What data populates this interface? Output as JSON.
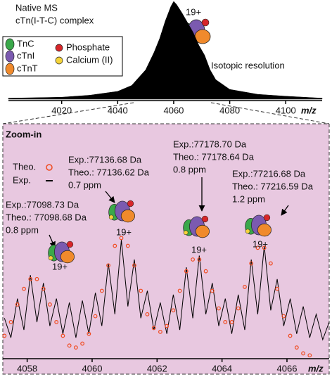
{
  "chart_data": [
    {
      "type": "area",
      "annotations": [
        "Native MS",
        "cTn(I-T-C) complex",
        "19+",
        "Isotopic resolution"
      ],
      "legend": [
        {
          "name": "TnC",
          "color": "#3aa84a"
        },
        {
          "name": "cTnI",
          "color": "#7b5ab0"
        },
        {
          "name": "cTnT",
          "color": "#f08a2c"
        },
        {
          "name": "Phosphate",
          "color": "#d7262a"
        },
        {
          "name": "Calcium (II)",
          "color": "#f5d43a"
        }
      ],
      "xlabel": "m/z",
      "x": [
        4001,
        4020,
        4030,
        4040,
        4045,
        4050,
        4053,
        4055,
        4057,
        4059,
        4060,
        4061,
        4063,
        4065,
        4067,
        4069,
        4071,
        4073,
        4075,
        4080,
        4090,
        4100,
        4113
      ],
      "values": [
        1,
        2,
        4,
        8,
        14,
        30,
        48,
        62,
        80,
        95,
        100,
        97,
        88,
        78,
        68,
        55,
        45,
        30,
        20,
        10,
        5,
        3,
        1
      ],
      "color": "#000000",
      "xlim": [
        4001,
        4113
      ],
      "ylim": [
        0,
        100
      ],
      "xticks": [
        4020,
        4040,
        4060,
        4080,
        4100
      ]
    },
    {
      "type": "line",
      "title": "Zoom-in",
      "xlabel": "m/z",
      "x": [
        4057.3,
        4057.5,
        4057.7,
        4057.9,
        4058.1,
        4058.3,
        4058.5,
        4058.7,
        4058.9,
        4059.1,
        4059.3,
        4059.5,
        4059.7,
        4059.9,
        4060.1,
        4060.3,
        4060.5,
        4060.7,
        4060.9,
        4061.1,
        4061.3,
        4061.5,
        4061.7,
        4061.9,
        4062.1,
        4062.3,
        4062.5,
        4062.7,
        4062.9,
        4063.1,
        4063.3,
        4063.5,
        4063.7,
        4063.9,
        4064.1,
        4064.3,
        4064.5,
        4064.7,
        4064.9,
        4065.1,
        4065.3,
        4065.5,
        4065.7,
        4065.9,
        4066.1,
        4066.3,
        4066.5,
        4066.7,
        4066.9,
        4067.1,
        4067.3
      ],
      "series": [
        {
          "name": "Theo.",
          "color": "#f04a1e",
          "mode": "markers",
          "values": [
            11,
            18,
            27,
            35,
            40,
            40,
            35,
            27,
            18,
            11,
            6,
            5,
            7,
            12,
            21,
            34,
            47,
            57,
            61,
            57,
            47,
            34,
            22,
            15,
            13,
            16,
            24,
            34,
            44,
            50,
            50,
            44,
            34,
            25,
            18,
            18,
            25,
            36,
            48,
            56,
            56,
            48,
            35,
            21,
            11,
            5,
            2,
            1,
            null,
            null,
            null
          ]
        },
        {
          "name": "Exp.",
          "color": "#000000",
          "mode": "lines",
          "values": [
            20,
            10,
            30,
            14,
            42,
            18,
            38,
            16,
            30,
            12,
            28,
            10,
            29,
            12,
            33,
            16,
            48,
            22,
            60,
            26,
            50,
            20,
            34,
            14,
            28,
            12,
            32,
            14,
            46,
            20,
            52,
            22,
            38,
            16,
            30,
            12,
            32,
            14,
            50,
            22,
            57,
            24,
            40,
            16,
            30,
            12,
            26,
            10,
            22,
            9,
            18
          ]
        }
      ],
      "annotations": [
        {
          "lines": [
            "Exp.:77098.73 Da",
            "Theo.: 77098.68 Da",
            "0.8 ppm"
          ],
          "charge": "19+"
        },
        {
          "lines": [
            "Exp.:77136.68 Da",
            "Theo.: 77136.62 Da",
            "0.7 ppm"
          ],
          "charge": "19+"
        },
        {
          "lines": [
            "Exp.:77178.70 Da",
            "Theo.: 77178.64 Da",
            "0.8 ppm"
          ],
          "charge": "19+"
        },
        {
          "lines": [
            "Exp.:77216.68 Da",
            "Theo.: 77216.59 Da",
            "1.2 ppm"
          ],
          "charge": "19+"
        }
      ],
      "xlim": [
        4057.25,
        4067.3
      ],
      "ylim": [
        0,
        100
      ],
      "xticks": [
        4058,
        4060,
        4062,
        4064,
        4066
      ]
    }
  ]
}
